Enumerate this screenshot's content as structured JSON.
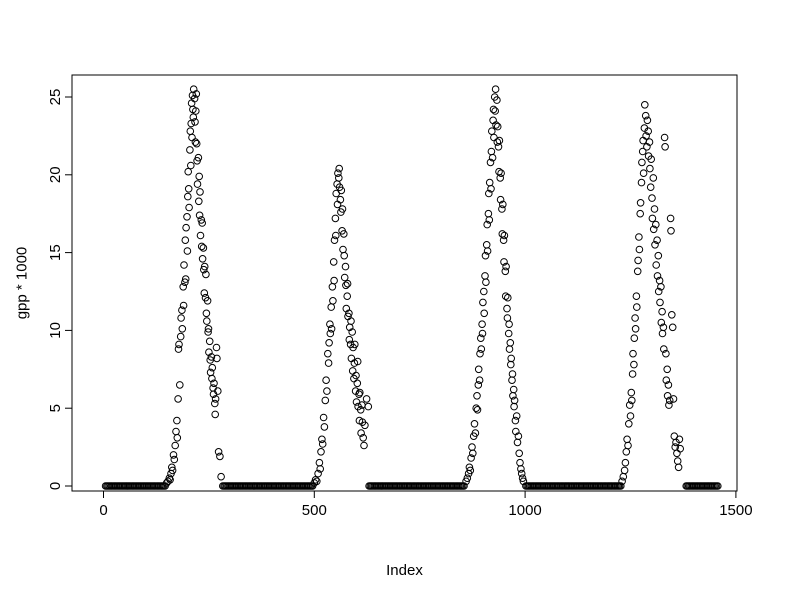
{
  "figure": {
    "background": "#ffffff",
    "foreground": "#000000"
  },
  "chart_data": {
    "type": "scatter",
    "title": "",
    "xlabel": "Index",
    "ylabel": "gpp * 1000",
    "x_ticks": [
      0,
      500,
      1000,
      1500
    ],
    "y_ticks": [
      0,
      5,
      10,
      15,
      20,
      25
    ],
    "xlim": [
      0,
      1500
    ],
    "ylim": [
      0,
      25.5
    ],
    "grid": false,
    "legend": null,
    "marker": {
      "shape": "open-circle",
      "color": "#000000"
    },
    "zero_step": 3,
    "zero_runs": [
      [
        5,
        148
      ],
      [
        283,
        497
      ],
      [
        630,
        857
      ],
      [
        1002,
        1227
      ],
      [
        1382,
        1458
      ]
    ],
    "points": [
      [
        150,
        0.2
      ],
      [
        153,
        0.3
      ],
      [
        156,
        0.5
      ],
      [
        158,
        0.4
      ],
      [
        160,
        0.8
      ],
      [
        162,
        1.2
      ],
      [
        164,
        1.0
      ],
      [
        166,
        2.0
      ],
      [
        168,
        1.7
      ],
      [
        170,
        2.6
      ],
      [
        172,
        3.5
      ],
      [
        174,
        4.2
      ],
      [
        175,
        3.1
      ],
      [
        177,
        5.6
      ],
      [
        178,
        8.8
      ],
      [
        179,
        9.1
      ],
      [
        181,
        6.5
      ],
      [
        183,
        9.6
      ],
      [
        184,
        10.8
      ],
      [
        186,
        11.3
      ],
      [
        187,
        10.1
      ],
      [
        189,
        12.8
      ],
      [
        190,
        11.6
      ],
      [
        191,
        14.2
      ],
      [
        193,
        13.1
      ],
      [
        194,
        15.8
      ],
      [
        195,
        13.3
      ],
      [
        196,
        16.6
      ],
      [
        198,
        17.3
      ],
      [
        199,
        15.1
      ],
      [
        200,
        18.6
      ],
      [
        201,
        20.2
      ],
      [
        202,
        19.1
      ],
      [
        203,
        17.9
      ],
      [
        205,
        21.6
      ],
      [
        206,
        22.8
      ],
      [
        207,
        20.6
      ],
      [
        208,
        23.3
      ],
      [
        209,
        24.6
      ],
      [
        210,
        22.4
      ],
      [
        211,
        25.1
      ],
      [
        212,
        24.2
      ],
      [
        213,
        23.7
      ],
      [
        214,
        25.5
      ],
      [
        216,
        24.9
      ],
      [
        217,
        23.4
      ],
      [
        218,
        22.1
      ],
      [
        219,
        24.1
      ],
      [
        220,
        25.2
      ],
      [
        221,
        22.0
      ],
      [
        222,
        20.9
      ],
      [
        223,
        19.4
      ],
      [
        225,
        21.1
      ],
      [
        226,
        18.3
      ],
      [
        227,
        19.9
      ],
      [
        228,
        17.4
      ],
      [
        229,
        18.9
      ],
      [
        230,
        16.1
      ],
      [
        232,
        17.1
      ],
      [
        233,
        15.4
      ],
      [
        234,
        16.9
      ],
      [
        235,
        14.6
      ],
      [
        237,
        15.3
      ],
      [
        238,
        13.9
      ],
      [
        239,
        12.4
      ],
      [
        240,
        14.1
      ],
      [
        242,
        12.1
      ],
      [
        243,
        13.6
      ],
      [
        244,
        11.1
      ],
      [
        245,
        10.6
      ],
      [
        247,
        11.9
      ],
      [
        248,
        9.9
      ],
      [
        249,
        10.1
      ],
      [
        250,
        8.6
      ],
      [
        252,
        9.3
      ],
      [
        253,
        8.1
      ],
      [
        254,
        7.3
      ],
      [
        256,
        8.3
      ],
      [
        257,
        6.9
      ],
      [
        258,
        7.6
      ],
      [
        260,
        6.3
      ],
      [
        261,
        5.9
      ],
      [
        262,
        6.6
      ],
      [
        264,
        5.3
      ],
      [
        265,
        4.6
      ],
      [
        266,
        5.6
      ],
      [
        268,
        8.9
      ],
      [
        269,
        8.2
      ],
      [
        271,
        6.1
      ],
      [
        273,
        2.2
      ],
      [
        276,
        1.9
      ],
      [
        279,
        0.6
      ],
      [
        500,
        0.2
      ],
      [
        503,
        0.4
      ],
      [
        506,
        0.3
      ],
      [
        509,
        0.8
      ],
      [
        512,
        1.5
      ],
      [
        514,
        1.1
      ],
      [
        516,
        2.2
      ],
      [
        518,
        3.0
      ],
      [
        520,
        2.7
      ],
      [
        522,
        4.4
      ],
      [
        524,
        3.8
      ],
      [
        526,
        5.5
      ],
      [
        528,
        6.8
      ],
      [
        530,
        6.1
      ],
      [
        532,
        8.5
      ],
      [
        534,
        7.9
      ],
      [
        535,
        9.2
      ],
      [
        537,
        10.4
      ],
      [
        538,
        9.8
      ],
      [
        540,
        11.5
      ],
      [
        541,
        10.1
      ],
      [
        543,
        12.8
      ],
      [
        544,
        11.9
      ],
      [
        546,
        14.4
      ],
      [
        547,
        13.2
      ],
      [
        548,
        15.8
      ],
      [
        550,
        17.2
      ],
      [
        551,
        16.1
      ],
      [
        552,
        18.8
      ],
      [
        554,
        19.4
      ],
      [
        555,
        18.1
      ],
      [
        556,
        20.1
      ],
      [
        558,
        19.8
      ],
      [
        559,
        20.4
      ],
      [
        560,
        19.2
      ],
      [
        562,
        18.4
      ],
      [
        563,
        17.6
      ],
      [
        564,
        19.0
      ],
      [
        566,
        16.4
      ],
      [
        567,
        17.8
      ],
      [
        568,
        15.2
      ],
      [
        570,
        16.2
      ],
      [
        571,
        14.8
      ],
      [
        572,
        13.4
      ],
      [
        574,
        14.1
      ],
      [
        575,
        12.9
      ],
      [
        576,
        11.4
      ],
      [
        578,
        12.2
      ],
      [
        579,
        13.0
      ],
      [
        580,
        10.9
      ],
      [
        582,
        11.1
      ],
      [
        583,
        9.4
      ],
      [
        584,
        10.2
      ],
      [
        586,
        9.1
      ],
      [
        587,
        10.6
      ],
      [
        588,
        8.2
      ],
      [
        590,
        9.9
      ],
      [
        591,
        7.4
      ],
      [
        592,
        8.9
      ],
      [
        594,
        6.9
      ],
      [
        595,
        7.9
      ],
      [
        596,
        9.1
      ],
      [
        598,
        6.1
      ],
      [
        599,
        7.1
      ],
      [
        600,
        5.4
      ],
      [
        602,
        6.6
      ],
      [
        603,
        8.0
      ],
      [
        604,
        5.1
      ],
      [
        606,
        5.9
      ],
      [
        607,
        4.2
      ],
      [
        608,
        6.0
      ],
      [
        610,
        4.9
      ],
      [
        611,
        3.4
      ],
      [
        613,
        5.2
      ],
      [
        614,
        4.1
      ],
      [
        616,
        3.1
      ],
      [
        618,
        2.6
      ],
      [
        620,
        3.9
      ],
      [
        624,
        5.6
      ],
      [
        628,
        5.1
      ],
      [
        860,
        0.3
      ],
      [
        863,
        0.5
      ],
      [
        866,
        0.8
      ],
      [
        868,
        1.2
      ],
      [
        870,
        1.0
      ],
      [
        872,
        1.8
      ],
      [
        874,
        2.5
      ],
      [
        876,
        2.1
      ],
      [
        878,
        3.2
      ],
      [
        880,
        4.0
      ],
      [
        882,
        3.4
      ],
      [
        884,
        5.0
      ],
      [
        886,
        5.8
      ],
      [
        887,
        4.9
      ],
      [
        889,
        6.5
      ],
      [
        890,
        7.5
      ],
      [
        892,
        6.8
      ],
      [
        893,
        8.5
      ],
      [
        895,
        9.5
      ],
      [
        896,
        8.8
      ],
      [
        898,
        10.4
      ],
      [
        899,
        9.8
      ],
      [
        900,
        11.8
      ],
      [
        902,
        12.5
      ],
      [
        903,
        11.1
      ],
      [
        905,
        13.5
      ],
      [
        906,
        14.8
      ],
      [
        907,
        13.1
      ],
      [
        909,
        15.5
      ],
      [
        910,
        16.8
      ],
      [
        911,
        15.1
      ],
      [
        913,
        17.5
      ],
      [
        914,
        18.8
      ],
      [
        915,
        17.1
      ],
      [
        916,
        19.5
      ],
      [
        918,
        20.8
      ],
      [
        919,
        19.1
      ],
      [
        920,
        21.5
      ],
      [
        921,
        22.8
      ],
      [
        923,
        21.1
      ],
      [
        924,
        23.5
      ],
      [
        925,
        24.2
      ],
      [
        926,
        22.4
      ],
      [
        928,
        25.0
      ],
      [
        929,
        24.1
      ],
      [
        930,
        25.5
      ],
      [
        931,
        23.2
      ],
      [
        933,
        24.8
      ],
      [
        934,
        22.1
      ],
      [
        935,
        23.1
      ],
      [
        937,
        21.8
      ],
      [
        938,
        20.2
      ],
      [
        939,
        22.2
      ],
      [
        941,
        19.8
      ],
      [
        942,
        18.4
      ],
      [
        943,
        20.1
      ],
      [
        945,
        17.8
      ],
      [
        946,
        16.2
      ],
      [
        947,
        18.1
      ],
      [
        949,
        15.8
      ],
      [
        950,
        14.4
      ],
      [
        951,
        16.1
      ],
      [
        953,
        13.8
      ],
      [
        954,
        12.2
      ],
      [
        955,
        14.1
      ],
      [
        957,
        11.4
      ],
      [
        958,
        10.8
      ],
      [
        959,
        12.1
      ],
      [
        961,
        9.8
      ],
      [
        962,
        10.4
      ],
      [
        963,
        8.8
      ],
      [
        965,
        9.2
      ],
      [
        966,
        7.8
      ],
      [
        967,
        8.2
      ],
      [
        969,
        6.8
      ],
      [
        970,
        7.2
      ],
      [
        971,
        5.8
      ],
      [
        973,
        6.2
      ],
      [
        974,
        5.1
      ],
      [
        975,
        5.5
      ],
      [
        977,
        4.2
      ],
      [
        978,
        3.5
      ],
      [
        980,
        4.5
      ],
      [
        982,
        2.8
      ],
      [
        984,
        3.2
      ],
      [
        986,
        2.1
      ],
      [
        988,
        1.5
      ],
      [
        990,
        1.1
      ],
      [
        992,
        0.8
      ],
      [
        994,
        0.5
      ],
      [
        996,
        0.3
      ],
      [
        1230,
        0.3
      ],
      [
        1233,
        0.6
      ],
      [
        1236,
        1.0
      ],
      [
        1238,
        1.5
      ],
      [
        1240,
        2.2
      ],
      [
        1242,
        3.0
      ],
      [
        1244,
        2.6
      ],
      [
        1246,
        4.0
      ],
      [
        1248,
        5.2
      ],
      [
        1250,
        4.5
      ],
      [
        1252,
        6.0
      ],
      [
        1253,
        5.5
      ],
      [
        1255,
        7.2
      ],
      [
        1256,
        8.5
      ],
      [
        1258,
        7.8
      ],
      [
        1259,
        9.5
      ],
      [
        1261,
        10.8
      ],
      [
        1262,
        10.1
      ],
      [
        1264,
        12.2
      ],
      [
        1265,
        11.5
      ],
      [
        1267,
        13.8
      ],
      [
        1268,
        14.5
      ],
      [
        1270,
        16.0
      ],
      [
        1271,
        15.2
      ],
      [
        1273,
        17.5
      ],
      [
        1274,
        18.2
      ],
      [
        1276,
        19.5
      ],
      [
        1277,
        20.8
      ],
      [
        1279,
        21.5
      ],
      [
        1280,
        22.2
      ],
      [
        1281,
        20.1
      ],
      [
        1283,
        23.0
      ],
      [
        1284,
        24.5
      ],
      [
        1286,
        23.8
      ],
      [
        1287,
        22.5
      ],
      [
        1289,
        21.8
      ],
      [
        1290,
        23.5
      ],
      [
        1292,
        22.8
      ],
      [
        1293,
        21.2
      ],
      [
        1295,
        22.1
      ],
      [
        1296,
        20.4
      ],
      [
        1298,
        19.2
      ],
      [
        1299,
        21.0
      ],
      [
        1301,
        18.5
      ],
      [
        1302,
        17.2
      ],
      [
        1304,
        19.8
      ],
      [
        1305,
        16.5
      ],
      [
        1307,
        17.8
      ],
      [
        1308,
        15.5
      ],
      [
        1310,
        16.8
      ],
      [
        1311,
        14.2
      ],
      [
        1313,
        15.8
      ],
      [
        1314,
        13.5
      ],
      [
        1316,
        14.8
      ],
      [
        1317,
        12.5
      ],
      [
        1319,
        13.2
      ],
      [
        1320,
        11.8
      ],
      [
        1322,
        12.8
      ],
      [
        1323,
        10.5
      ],
      [
        1325,
        11.2
      ],
      [
        1326,
        9.8
      ],
      [
        1328,
        10.2
      ],
      [
        1329,
        8.8
      ],
      [
        1331,
        22.4
      ],
      [
        1332,
        21.8
      ],
      [
        1334,
        8.5
      ],
      [
        1335,
        6.8
      ],
      [
        1337,
        7.5
      ],
      [
        1338,
        5.8
      ],
      [
        1340,
        6.5
      ],
      [
        1341,
        5.2
      ],
      [
        1343,
        5.5
      ],
      [
        1345,
        17.2
      ],
      [
        1346,
        16.4
      ],
      [
        1348,
        11.0
      ],
      [
        1350,
        10.2
      ],
      [
        1352,
        5.6
      ],
      [
        1354,
        3.2
      ],
      [
        1356,
        2.5
      ],
      [
        1358,
        2.8
      ],
      [
        1360,
        2.1
      ],
      [
        1362,
        1.6
      ],
      [
        1364,
        1.2
      ],
      [
        1366,
        3.0
      ],
      [
        1368,
        2.4
      ]
    ]
  }
}
